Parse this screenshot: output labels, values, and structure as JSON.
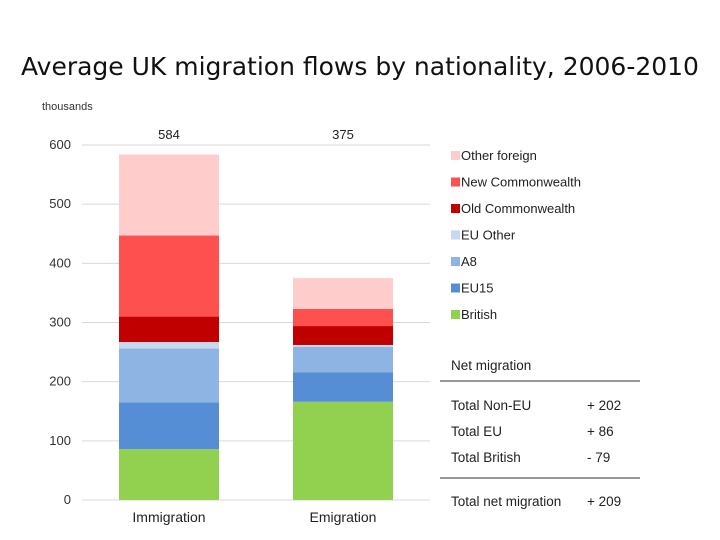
{
  "title": "Average UK migration flows by nationality, 2006-2010",
  "chart_data": {
    "type": "bar",
    "stacked": true,
    "unit_label": "thousands",
    "categories": [
      "Immigration",
      "Emigration"
    ],
    "totals": [
      "584",
      "375"
    ],
    "ylim": [
      0,
      600
    ],
    "yticks": [
      0,
      100,
      200,
      300,
      400,
      500,
      600
    ],
    "grid": true,
    "legend_position": "right",
    "series": [
      {
        "name": "British",
        "color": "#92D050",
        "values": [
          86,
          166
        ]
      },
      {
        "name": "EU15",
        "color": "#558ED5",
        "values": [
          79,
          50
        ]
      },
      {
        "name": "A8",
        "color": "#8EB4E3",
        "values": [
          91,
          43
        ]
      },
      {
        "name": "EU Other",
        "color": "#C6D9F1",
        "values": [
          11,
          3
        ]
      },
      {
        "name": "Old Commonwealth",
        "color": "#C00000",
        "values": [
          43,
          32
        ]
      },
      {
        "name": "New Commonwealth",
        "color": "#FF5050",
        "values": [
          137,
          29
        ]
      },
      {
        "name": "Other foreign",
        "color": "#FFCCCC",
        "values": [
          137,
          52
        ]
      }
    ]
  },
  "net_migration_table": {
    "header": "Net migration",
    "rows": [
      {
        "label": "Total Non-EU",
        "value": "+ 202"
      },
      {
        "label": "Total EU",
        "value": "+ 86"
      },
      {
        "label": "Total British",
        "value": "- 79"
      }
    ],
    "total": {
      "label": "Total net migration",
      "value": "+ 209"
    }
  }
}
